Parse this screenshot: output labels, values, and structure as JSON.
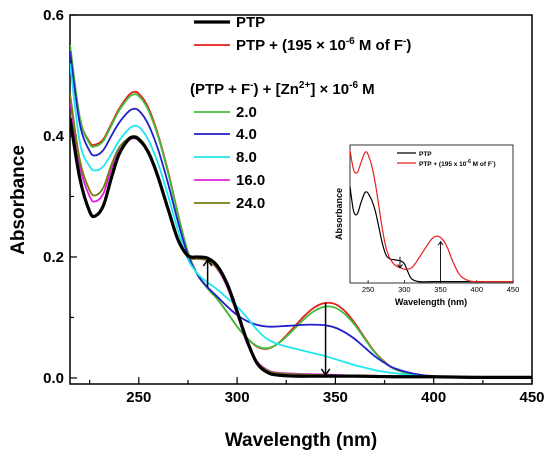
{
  "chart_data": [
    {
      "type": "line",
      "xlabel": "Wavelength (nm)",
      "ylabel": "Absorbance",
      "xlim": [
        215,
        450
      ],
      "ylim": [
        -0.01,
        0.6
      ],
      "x_ticks": [
        250,
        300,
        350,
        400,
        450
      ],
      "y_ticks": [
        0.0,
        0.2,
        0.4,
        0.6
      ],
      "x_tick_labels": [
        "250",
        "300",
        "350",
        "400",
        "450"
      ],
      "y_tick_labels": [
        "0.0",
        "0.2",
        "0.4",
        "0.6"
      ],
      "legend_position": "top-right",
      "legend_subheading": {
        "main": "(PTP + F",
        "sup1": "-",
        "mid": ") + [Zn",
        "sup2": "2+",
        "tail": "] × 10",
        "sup3": "-6",
        "end": " M"
      },
      "series": [
        {
          "name": "PTP",
          "color": "#000000",
          "width": 3.2,
          "x": [
            215,
            220,
            225,
            228,
            232,
            236,
            240,
            245,
            248,
            250,
            253,
            256,
            260,
            265,
            270,
            275,
            280,
            285,
            290,
            295,
            300,
            305,
            310,
            315,
            320,
            330,
            340,
            350,
            360,
            380,
            400,
            420,
            450
          ],
          "y": [
            0.43,
            0.33,
            0.275,
            0.268,
            0.285,
            0.33,
            0.37,
            0.395,
            0.398,
            0.394,
            0.383,
            0.365,
            0.33,
            0.278,
            0.228,
            0.202,
            0.2,
            0.198,
            0.185,
            0.155,
            0.11,
            0.062,
            0.025,
            0.01,
            0.005,
            0.003,
            0.003,
            0.003,
            0.003,
            0.002,
            0.002,
            0.001,
            0.001
          ]
        },
        {
          "name": "PTP + (195 × 10^-6 M of F^-)",
          "color": "#e8201c",
          "width": 1.8,
          "x": [
            215,
            220,
            225,
            228,
            232,
            236,
            240,
            245,
            248,
            250,
            253,
            256,
            260,
            265,
            270,
            275,
            280,
            285,
            290,
            295,
            300,
            305,
            310,
            315,
            320,
            325,
            330,
            335,
            340,
            345,
            350,
            355,
            360,
            365,
            370,
            375,
            380,
            390,
            400,
            420,
            450
          ],
          "y": [
            0.55,
            0.43,
            0.39,
            0.386,
            0.395,
            0.42,
            0.445,
            0.468,
            0.473,
            0.47,
            0.458,
            0.438,
            0.4,
            0.34,
            0.27,
            0.208,
            0.17,
            0.148,
            0.13,
            0.108,
            0.085,
            0.066,
            0.052,
            0.048,
            0.055,
            0.07,
            0.088,
            0.105,
            0.118,
            0.124,
            0.122,
            0.11,
            0.09,
            0.066,
            0.043,
            0.027,
            0.015,
            0.005,
            0.002,
            0.001,
            0.001
          ]
        },
        {
          "name": "2.0",
          "color": "#3fbf3f",
          "width": 1.8,
          "x": [
            215,
            220,
            225,
            228,
            232,
            236,
            240,
            245,
            248,
            250,
            253,
            256,
            260,
            265,
            270,
            275,
            280,
            285,
            290,
            295,
            300,
            305,
            310,
            315,
            320,
            325,
            330,
            335,
            340,
            345,
            350,
            355,
            360,
            365,
            370,
            375,
            380,
            390,
            400,
            420,
            450
          ],
          "y": [
            0.55,
            0.43,
            0.387,
            0.383,
            0.392,
            0.417,
            0.442,
            0.464,
            0.469,
            0.466,
            0.454,
            0.434,
            0.397,
            0.337,
            0.268,
            0.207,
            0.17,
            0.148,
            0.13,
            0.108,
            0.085,
            0.066,
            0.053,
            0.049,
            0.055,
            0.068,
            0.084,
            0.1,
            0.112,
            0.118,
            0.116,
            0.105,
            0.087,
            0.064,
            0.042,
            0.026,
            0.015,
            0.005,
            0.002,
            0.001,
            0.001
          ]
        },
        {
          "name": "4.0",
          "color": "#2020c8",
          "width": 1.8,
          "x": [
            215,
            220,
            225,
            228,
            232,
            236,
            240,
            245,
            248,
            250,
            253,
            256,
            260,
            265,
            270,
            275,
            280,
            285,
            290,
            295,
            300,
            305,
            310,
            315,
            320,
            325,
            330,
            335,
            340,
            345,
            350,
            355,
            360,
            365,
            370,
            375,
            380,
            390,
            400,
            420,
            450
          ],
          "y": [
            0.54,
            0.42,
            0.375,
            0.368,
            0.377,
            0.4,
            0.422,
            0.441,
            0.445,
            0.442,
            0.43,
            0.411,
            0.376,
            0.32,
            0.257,
            0.203,
            0.17,
            0.15,
            0.134,
            0.118,
            0.104,
            0.094,
            0.088,
            0.085,
            0.085,
            0.086,
            0.087,
            0.088,
            0.088,
            0.087,
            0.083,
            0.075,
            0.064,
            0.05,
            0.036,
            0.025,
            0.016,
            0.007,
            0.003,
            0.002,
            0.001
          ]
        },
        {
          "name": "8.0",
          "color": "#20e8f0",
          "width": 1.8,
          "x": [
            215,
            220,
            225,
            228,
            232,
            236,
            240,
            245,
            248,
            250,
            253,
            256,
            260,
            265,
            270,
            275,
            280,
            285,
            290,
            295,
            300,
            305,
            310,
            315,
            320,
            325,
            330,
            335,
            340,
            345,
            350,
            355,
            360,
            365,
            370,
            375,
            380,
            390,
            400,
            420,
            450
          ],
          "y": [
            0.52,
            0.39,
            0.35,
            0.343,
            0.35,
            0.37,
            0.392,
            0.412,
            0.417,
            0.415,
            0.404,
            0.386,
            0.353,
            0.3,
            0.243,
            0.196,
            0.172,
            0.158,
            0.146,
            0.132,
            0.118,
            0.1,
            0.08,
            0.065,
            0.057,
            0.052,
            0.048,
            0.044,
            0.04,
            0.036,
            0.031,
            0.026,
            0.021,
            0.017,
            0.013,
            0.01,
            0.008,
            0.004,
            0.002,
            0.001,
            0.001
          ]
        },
        {
          "name": "16.0",
          "color": "#e020e0",
          "width": 1.8,
          "x": [
            215,
            220,
            225,
            228,
            232,
            236,
            240,
            245,
            248,
            250,
            253,
            256,
            260,
            265,
            270,
            275,
            280,
            285,
            290,
            295,
            300,
            305,
            310,
            315,
            320,
            330,
            340,
            350,
            360,
            380,
            400,
            420,
            450
          ],
          "y": [
            0.46,
            0.35,
            0.3,
            0.292,
            0.305,
            0.345,
            0.375,
            0.393,
            0.396,
            0.393,
            0.382,
            0.364,
            0.33,
            0.278,
            0.229,
            0.2,
            0.197,
            0.194,
            0.18,
            0.15,
            0.105,
            0.058,
            0.028,
            0.014,
            0.009,
            0.007,
            0.006,
            0.005,
            0.004,
            0.003,
            0.002,
            0.001,
            0.001
          ]
        },
        {
          "name": "24.0",
          "color": "#7a7a10",
          "width": 1.8,
          "x": [
            215,
            220,
            225,
            228,
            232,
            236,
            240,
            245,
            248,
            250,
            253,
            256,
            260,
            265,
            270,
            275,
            280,
            285,
            290,
            295,
            300,
            305,
            310,
            315,
            320,
            330,
            340,
            350,
            360,
            380,
            400,
            420,
            450
          ],
          "y": [
            0.47,
            0.36,
            0.31,
            0.302,
            0.315,
            0.352,
            0.381,
            0.397,
            0.4,
            0.397,
            0.386,
            0.368,
            0.334,
            0.28,
            0.229,
            0.2,
            0.197,
            0.194,
            0.181,
            0.152,
            0.107,
            0.06,
            0.027,
            0.013,
            0.008,
            0.006,
            0.005,
            0.004,
            0.004,
            0.003,
            0.002,
            0.001,
            0.001
          ]
        }
      ],
      "annotations": [
        {
          "type": "arrow",
          "direction": "up",
          "x": 285,
          "y_from": 0.15,
          "y_to": 0.195
        },
        {
          "type": "arrow",
          "direction": "down",
          "x": 345,
          "y_from": 0.124,
          "y_to": 0.005
        }
      ]
    },
    {
      "type": "line",
      "inset": true,
      "xlabel": "Wavelength (nm)",
      "ylabel": "Absorbance",
      "xlim": [
        225,
        450
      ],
      "ylim": [
        0,
        1.0
      ],
      "x_ticks": [
        250,
        300,
        350,
        400,
        450
      ],
      "x_tick_labels": [
        "250",
        "300",
        "350",
        "400",
        "450"
      ],
      "series": [
        {
          "name": "PTP",
          "color": "#000000",
          "width": 1.2,
          "x": [
            225,
            230,
            235,
            240,
            245,
            248,
            250,
            255,
            260,
            265,
            270,
            275,
            280,
            285,
            290,
            295,
            300,
            305,
            310,
            320,
            340,
            360,
            400,
            450
          ],
          "y": [
            0.7,
            0.52,
            0.5,
            0.58,
            0.65,
            0.66,
            0.65,
            0.6,
            0.52,
            0.4,
            0.28,
            0.2,
            0.175,
            0.17,
            0.165,
            0.16,
            0.14,
            0.08,
            0.03,
            0.01,
            0.01,
            0.01,
            0.01,
            0.01
          ]
        },
        {
          "name": "PTP + (195 x 10^-6 M of F^-)",
          "color": "#e8201c",
          "width": 1.2,
          "x": [
            225,
            230,
            235,
            240,
            245,
            248,
            250,
            255,
            260,
            265,
            270,
            275,
            280,
            285,
            290,
            295,
            300,
            305,
            310,
            315,
            320,
            325,
            330,
            335,
            340,
            345,
            350,
            355,
            360,
            365,
            370,
            375,
            380,
            390,
            400,
            420,
            450
          ],
          "y": [
            0.96,
            0.82,
            0.8,
            0.87,
            0.94,
            0.95,
            0.93,
            0.85,
            0.72,
            0.55,
            0.38,
            0.25,
            0.18,
            0.14,
            0.12,
            0.11,
            0.1,
            0.1,
            0.11,
            0.14,
            0.18,
            0.22,
            0.26,
            0.3,
            0.33,
            0.34,
            0.33,
            0.3,
            0.25,
            0.18,
            0.12,
            0.07,
            0.04,
            0.015,
            0.01,
            0.01,
            0.01
          ]
        }
      ],
      "annotations": [
        {
          "type": "arrow",
          "direction": "down",
          "x": 294,
          "y_from": 0.19,
          "y_to": 0.11
        },
        {
          "type": "arrow",
          "direction": "up",
          "x": 350,
          "y_from": 0.01,
          "y_to": 0.3
        }
      ]
    }
  ],
  "legend": {
    "ptp": "PTP",
    "ptp_f_prefix": "PTP + (195 × 10",
    "ptp_f_sup1": "-6",
    "ptp_f_mid": " M of F",
    "ptp_f_sup2": "-",
    "ptp_f_end": ")",
    "items": [
      "2.0",
      "4.0",
      "8.0",
      "16.0",
      "24.0"
    ]
  },
  "inset_legend": {
    "ptp": "PTP",
    "ptp_f_prefix": "PTP + (195 x 10",
    "ptp_f_sup1": "-6",
    "ptp_f_mid": " M of F",
    "ptp_f_sup2": "-",
    "ptp_f_end": ")"
  }
}
